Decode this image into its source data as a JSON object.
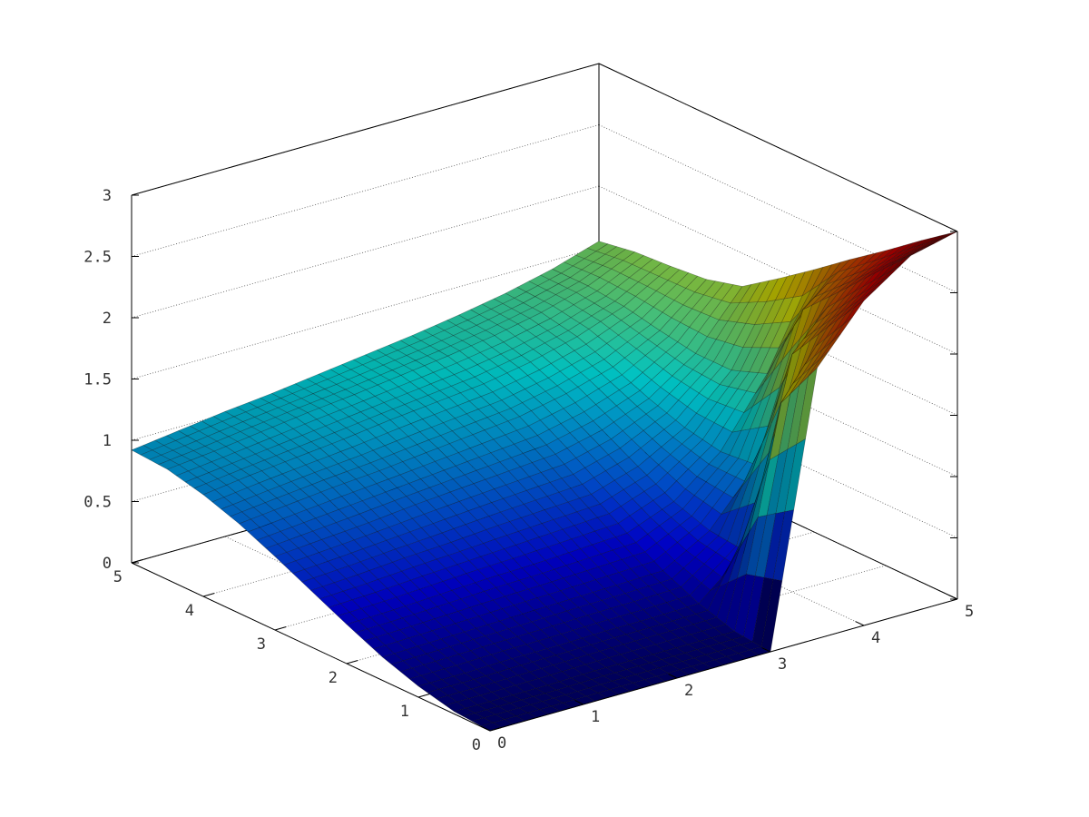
{
  "chart_data": {
    "type": "surface",
    "title": "",
    "xlabel": "",
    "ylabel": "",
    "zlabel": "",
    "colormap": "jet",
    "grid": true,
    "xlim": [
      0,
      5
    ],
    "ylim": [
      0,
      5
    ],
    "zlim": [
      0,
      3
    ],
    "x_ticks": [
      "0",
      "1",
      "2",
      "3",
      "4",
      "5"
    ],
    "y_ticks": [
      "0",
      "1",
      "2",
      "3",
      "4",
      "5"
    ],
    "z_ticks": [
      "0",
      "0.5",
      "1",
      "1.5",
      "2",
      "2.5",
      "3"
    ],
    "x": [
      0,
      0.5,
      1,
      1.5,
      2,
      2.5,
      3,
      3.5,
      4,
      4.5,
      5
    ],
    "y": [
      0,
      0.5,
      1,
      1.5,
      2,
      2.5,
      3,
      3.5,
      4,
      4.5,
      5
    ],
    "z": [
      [
        0.0,
        0.0,
        0.0,
        0.0,
        0.0,
        0.0,
        0.0,
        2.21,
        2.65,
        2.91,
        3.0
      ],
      [
        0.02,
        0.02,
        0.02,
        0.03,
        0.03,
        0.03,
        0.03,
        1.79,
        2.3,
        2.63,
        2.79
      ],
      [
        0.09,
        0.09,
        0.1,
        0.1,
        0.11,
        0.11,
        0.12,
        0.44,
        1.94,
        2.34,
        2.57
      ],
      [
        0.19,
        0.2,
        0.21,
        0.22,
        0.23,
        0.24,
        0.25,
        0.47,
        0.9,
        2.06,
        2.36
      ],
      [
        0.32,
        0.33,
        0.35,
        0.37,
        0.38,
        0.4,
        0.42,
        0.57,
        0.87,
        1.4,
        2.14
      ],
      [
        0.46,
        0.48,
        0.51,
        0.53,
        0.56,
        0.58,
        0.6,
        0.72,
        0.93,
        1.29,
        1.93
      ],
      [
        0.6,
        0.63,
        0.66,
        0.7,
        0.73,
        0.76,
        0.79,
        0.88,
        1.03,
        1.29,
        1.73
      ],
      [
        0.73,
        0.77,
        0.81,
        0.84,
        0.88,
        0.92,
        0.96,
        1.04,
        1.15,
        1.34,
        1.65
      ],
      [
        0.83,
        0.88,
        0.92,
        0.96,
        1.01,
        1.05,
        1.09,
        1.16,
        1.26,
        1.4,
        1.62
      ],
      [
        0.9,
        0.94,
        0.99,
        1.04,
        1.08,
        1.13,
        1.18,
        1.24,
        1.32,
        1.43,
        1.6
      ],
      [
        0.92,
        0.97,
        1.02,
        1.06,
        1.11,
        1.16,
        1.21,
        1.27,
        1.34,
        1.43,
        1.55
      ]
    ]
  }
}
